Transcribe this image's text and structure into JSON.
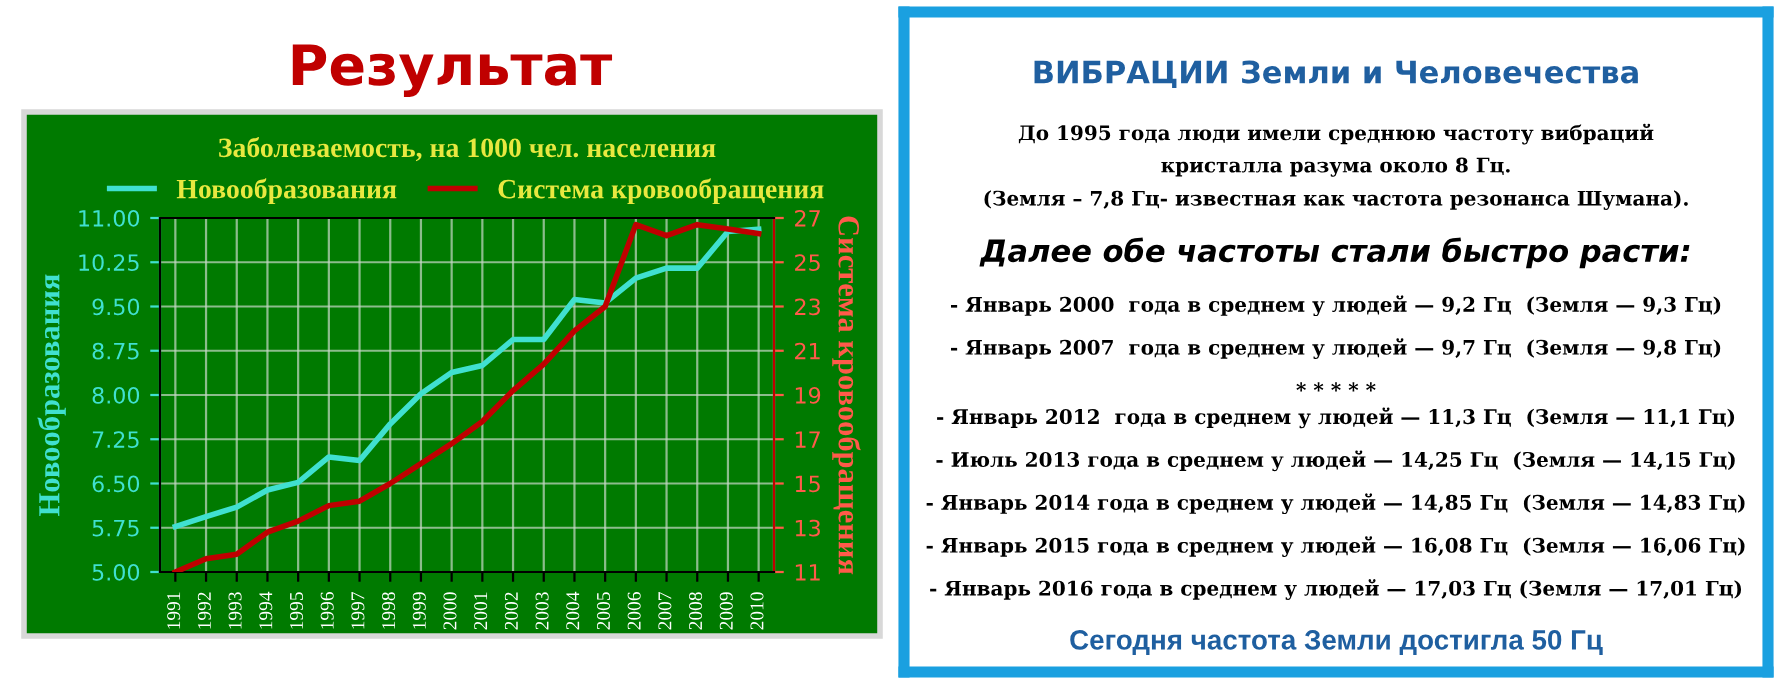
{
  "chart_data": [
    {
      "type": "line",
      "title": "Результат",
      "subtitle": "Заболеваемость, на 1000 чел. населения",
      "ylabel": "Новообразования",
      "y2label": "Система кровообращения",
      "categories": [
        "1991",
        "1992",
        "1993",
        "1994",
        "1995",
        "1996",
        "1997",
        "1998",
        "1999",
        "2000",
        "2001",
        "2002",
        "2003",
        "2004",
        "2005",
        "2006",
        "2007",
        "2008",
        "2009",
        "2010"
      ],
      "series": [
        {
          "name": "Новообразования",
          "color": "#40e0d0",
          "values": [
            5.77,
            5.94,
            6.1,
            6.39,
            6.52,
            6.95,
            6.89,
            7.51,
            8.02,
            8.38,
            8.5,
            8.94,
            8.94,
            9.62,
            9.56,
            9.98,
            10.15,
            10.15,
            10.77,
            10.81
          ]
        },
        {
          "name": "Система кровообращения",
          "color": "#c00000",
          "axis": "y2",
          "values": [
            11.0,
            11.6,
            11.8,
            12.8,
            13.3,
            14.0,
            14.2,
            15.0,
            15.9,
            16.8,
            17.8,
            19.2,
            20.4,
            21.9,
            23.0,
            26.7,
            26.2,
            26.7,
            26.5,
            26.3
          ]
        }
      ],
      "ylim": [
        5,
        11
      ],
      "yticks": [
        {
          "value": 5,
          "label": "5.00"
        },
        5.75,
        {
          "value": 6.5,
          "label": "6.50"
        },
        7.25,
        {
          "value": 8,
          "label": "8.00"
        },
        8.75,
        {
          "value": 9.5,
          "label": "9.50"
        },
        10.25,
        {
          "value": 11,
          "label": "11.00"
        }
      ],
      "y2lim": [
        11,
        27
      ],
      "y2ticks": [
        11,
        13,
        15,
        17,
        19,
        21,
        23,
        25,
        27
      ],
      "grid": true,
      "legend": "top",
      "line_style": "solid",
      "marker": "none"
    },
    {
      "type": "other",
      "title": "ВИБРАЦИИ Земли и Человечества",
      "annotations": [
        "До 1995 года люди имели среднюю частоту вибраций",
        "кристалла разума около 8 Гц.",
        "(Земля – 7,8 Гц- известная как частота резонанса Шумана).",
        "Далее обе частоты стали быстро расти:",
        "- Январь 2000  года в среднем у людей — 9,2 Гц  (Земля — 9,3 Гц)",
        "- Январь 2007  года в среднем у людей — 9,7 Гц  (Земля — 9,8 Гц)",
        "* * * * *",
        "- Январь 2012  года в среднем у людей — 11,3 Гц  (Земля — 11,1 Гц)",
        "- Июль 2013 года в среднем у людей — 14,25 Гц  (Земля — 14,15 Гц)",
        "- Январь 2014 года в среднем у людей — 14,85 Гц  (Земля — 14,83 Гц)",
        "- Январь 2015 года в среднем у людей — 16,08 Гц  (Земля — 16,06 Гц)",
        "- Январь 2016 года в среднем у людей — 17,03 Гц (Земля — 17,01 Гц)",
        "Сегодня частота Земли достигла 50 Гц"
      ]
    }
  ]
}
